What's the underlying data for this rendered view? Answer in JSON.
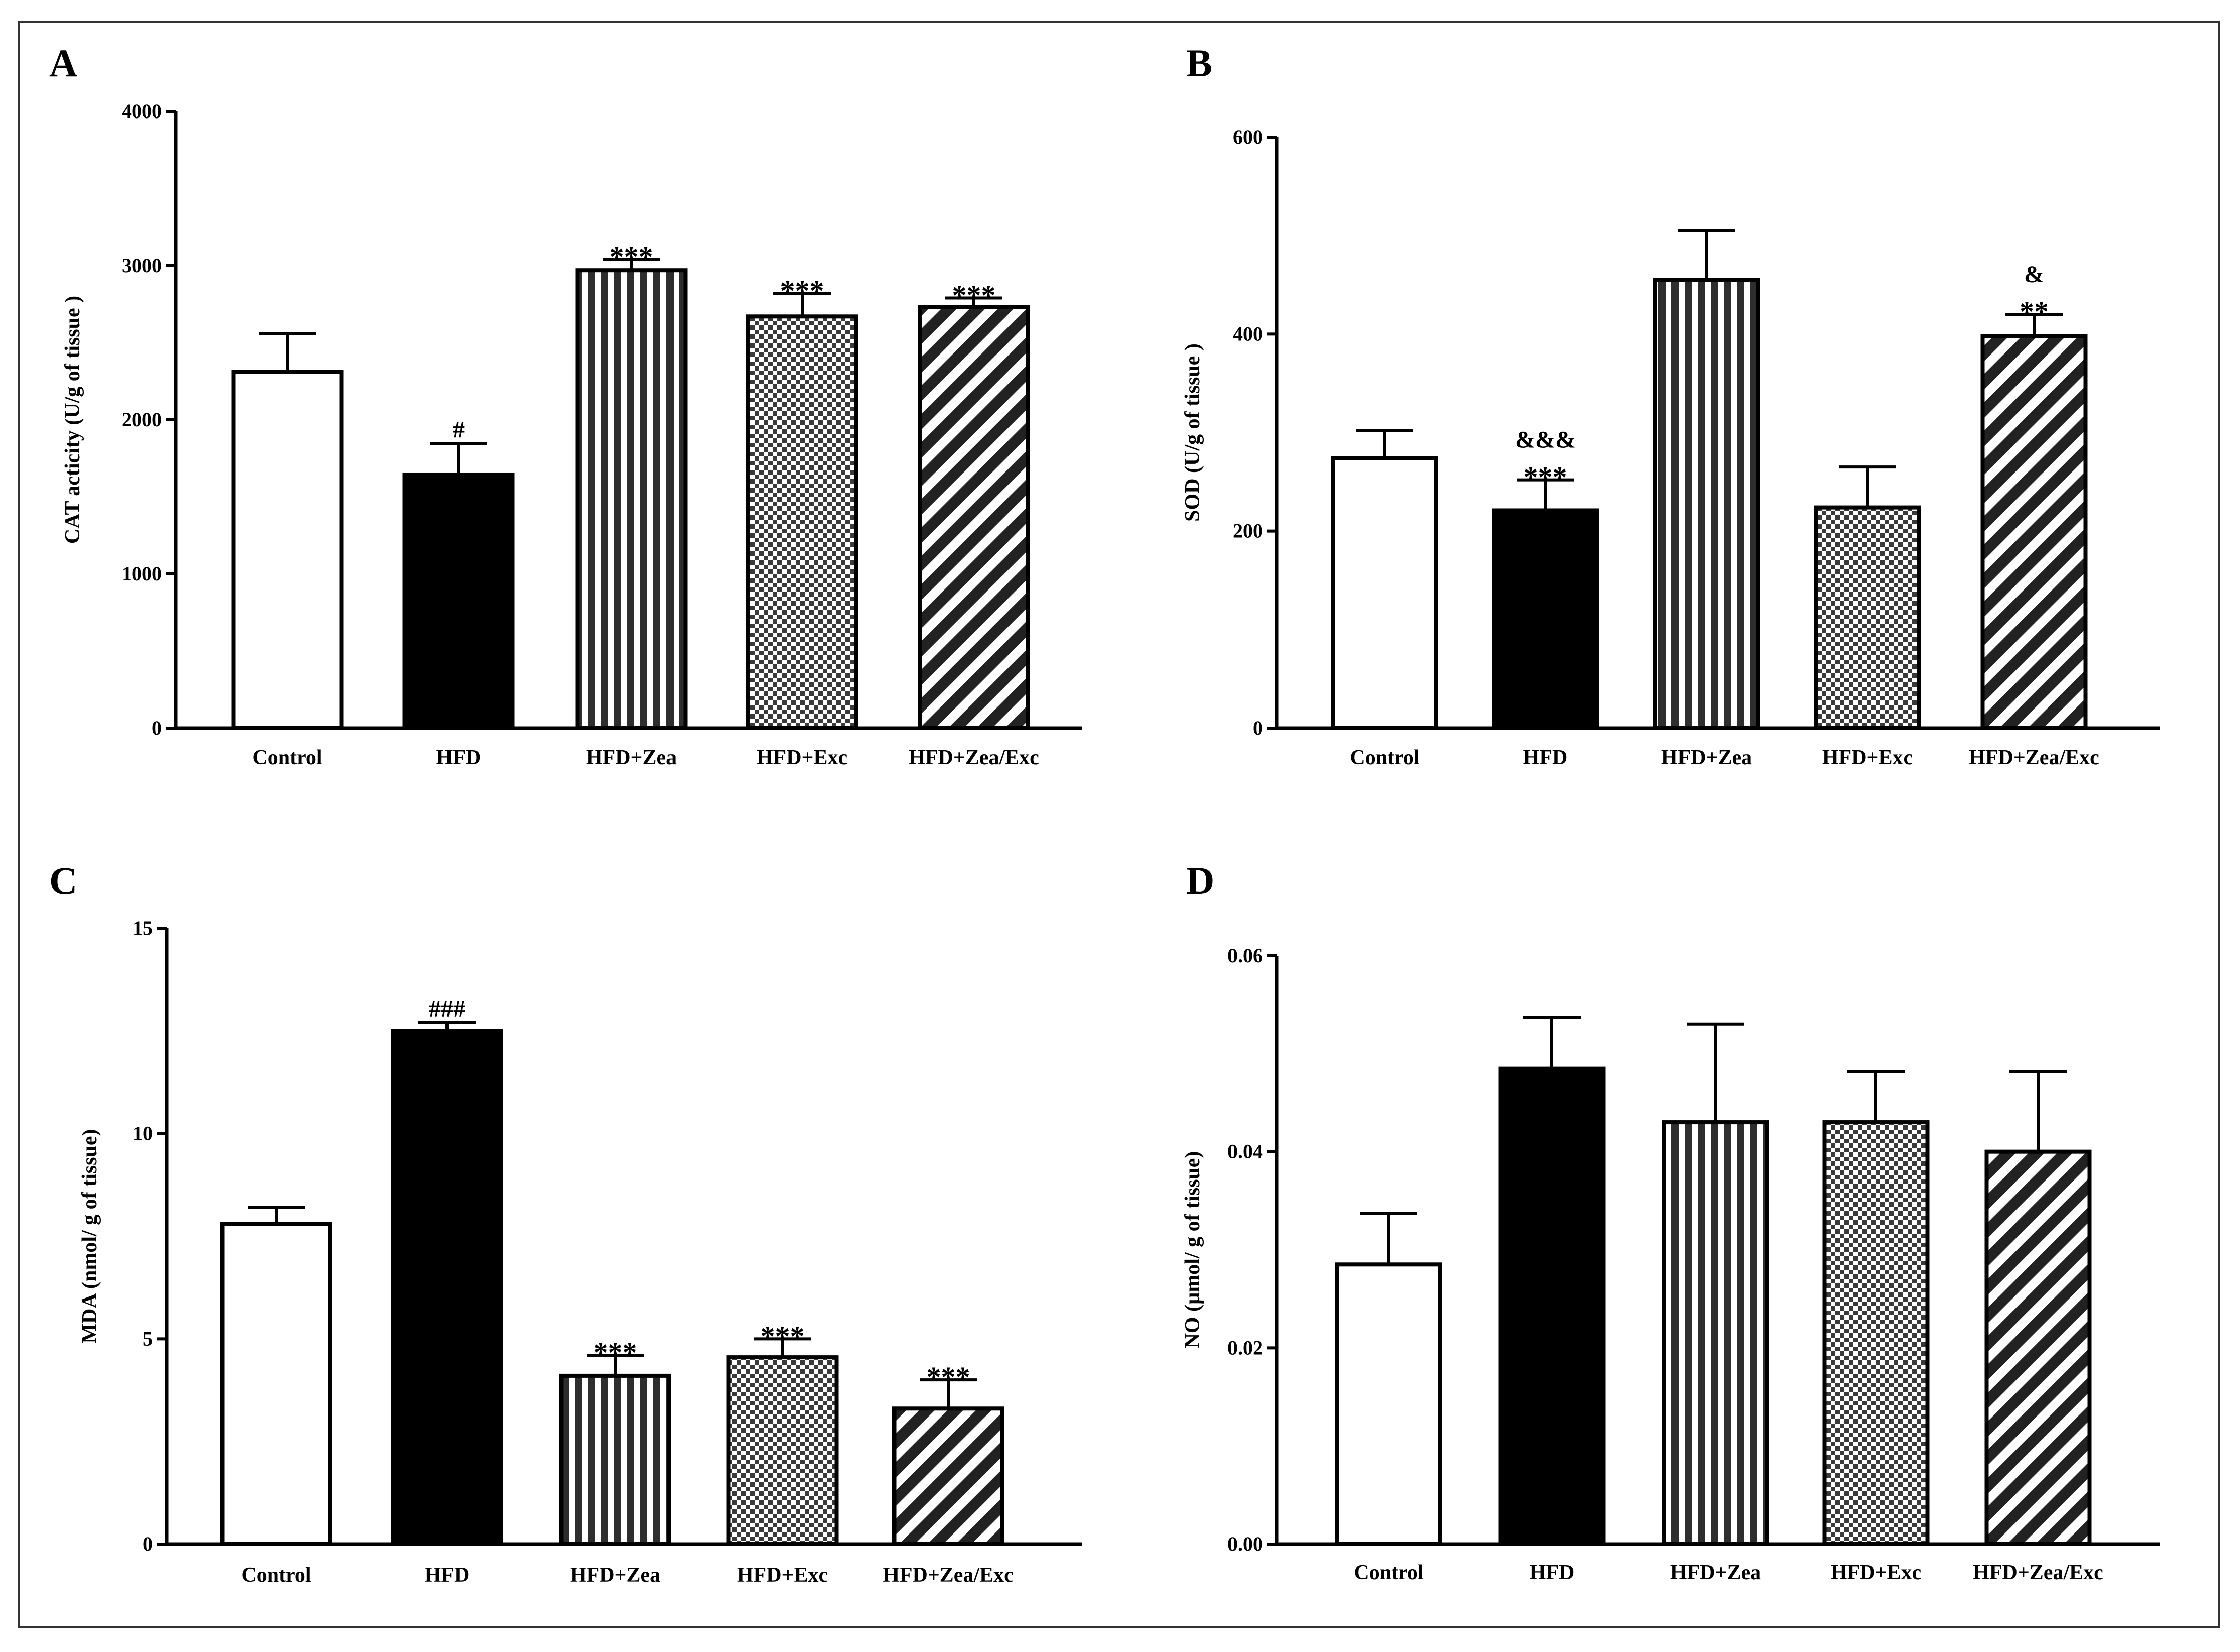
{
  "figure": {
    "panels": [
      "A",
      "B",
      "C",
      "D"
    ]
  },
  "colors": {
    "axis": "#000000",
    "bar_stroke": "#000000",
    "hatch_dark": "#2e2e2e",
    "hatch_light": "#ffffff",
    "control_fill": "#ffffff",
    "hfd_fill": "#000000"
  },
  "chart_data": [
    {
      "panel": "A",
      "type": "bar",
      "title": "",
      "xlabel": "",
      "ylabel": "CAT acticity (U/g of tissue )",
      "ylim": [
        0,
        4000
      ],
      "yticks": [
        "0",
        "1000",
        "2000",
        "3000",
        "4000"
      ],
      "categories": [
        "Control",
        "HFD",
        "HFD+Zea",
        "HFD+Exc",
        "HFD+Zea/Exc"
      ],
      "values": [
        2310,
        1645,
        2970,
        2670,
        2730
      ],
      "errors": [
        250,
        200,
        70,
        150,
        60
      ],
      "annotations": [
        [],
        [
          "#"
        ],
        [
          "***"
        ],
        [
          "***"
        ],
        [
          "***"
        ]
      ]
    },
    {
      "panel": "B",
      "type": "bar",
      "title": "",
      "xlabel": "",
      "ylabel": "SOD (U/g of tissue )",
      "ylim": [
        0,
        600
      ],
      "yticks": [
        "0",
        "200",
        "400",
        "600"
      ],
      "categories": [
        "Control",
        "HFD",
        "HFD+Zea",
        "HFD+Exc",
        "HFD+Zea/Exc"
      ],
      "values": [
        274,
        221,
        455,
        224,
        398
      ],
      "errors": [
        28,
        31,
        50,
        41,
        22
      ],
      "annotations": [
        [],
        [
          "&&&",
          "***"
        ],
        [],
        [],
        [
          "&",
          "**"
        ]
      ]
    },
    {
      "panel": "C",
      "type": "bar",
      "title": "",
      "xlabel": "",
      "ylabel": "MDA (nmol/ g of tissue)",
      "ylim": [
        0,
        15
      ],
      "yticks": [
        "0",
        "5",
        "10",
        "15"
      ],
      "categories": [
        "Control",
        "HFD",
        "HFD+Zea",
        "HFD+Exc",
        "HFD+Zea/Exc"
      ],
      "values": [
        7.8,
        12.5,
        4.1,
        4.55,
        3.3
      ],
      "errors": [
        0.4,
        0.2,
        0.5,
        0.45,
        0.7
      ],
      "annotations": [
        [],
        [
          "###"
        ],
        [
          "***"
        ],
        [
          "***"
        ],
        [
          "***"
        ]
      ]
    },
    {
      "panel": "D",
      "type": "bar",
      "title": "",
      "xlabel": "",
      "ylabel": "NO (µmol/ g of tissue)",
      "ylim": [
        0,
        0.06
      ],
      "yticks": [
        "0.00",
        "0.02",
        "0.04",
        "0.06"
      ],
      "categories": [
        "Control",
        "HFD",
        "HFD+Zea",
        "HFD+Exc",
        "HFD+Zea/Exc"
      ],
      "values": [
        0.0285,
        0.0485,
        0.043,
        0.043,
        0.04
      ],
      "errors": [
        0.0052,
        0.0052,
        0.01,
        0.0052,
        0.0082
      ],
      "annotations": [
        [],
        [],
        [],
        [],
        []
      ]
    }
  ]
}
